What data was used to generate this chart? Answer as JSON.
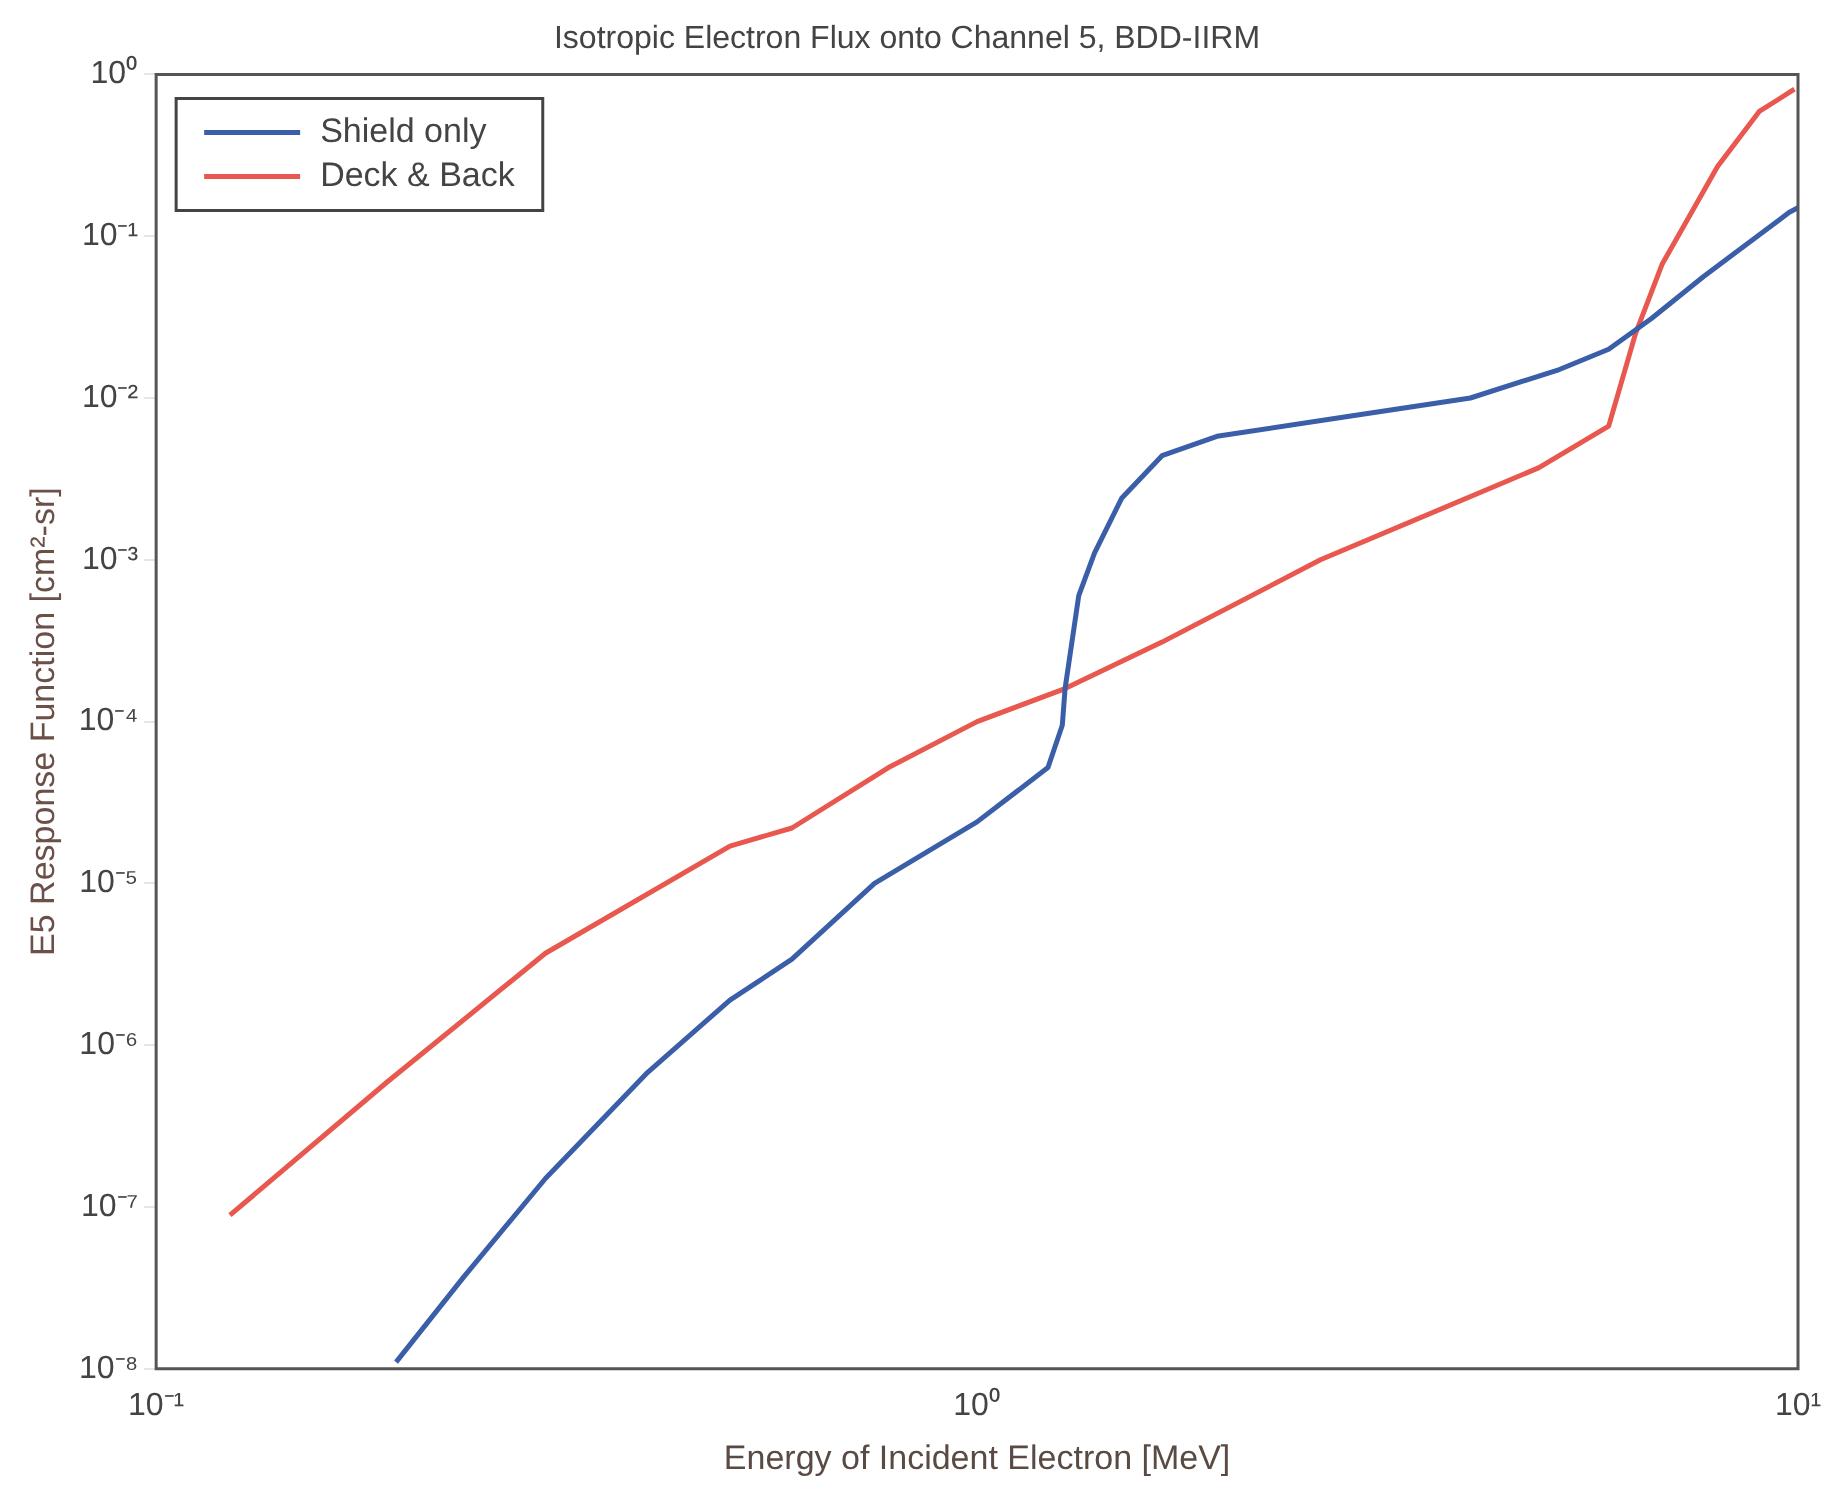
{
  "chart_data": {
    "type": "line",
    "title": "Isotropic Electron Flux onto Channel 5, BDD-IIRM",
    "xlabel": "Energy of Incident Electron [MeV]",
    "ylabel": "E5 Response Function [cm²-sr]",
    "log": "xy",
    "xlim": [
      0.1,
      10
    ],
    "ylim": [
      1e-08,
      1
    ],
    "xticks": [
      {
        "value": 0.1,
        "label": "10⁻¹"
      },
      {
        "value": 1,
        "label": "10⁰"
      },
      {
        "value": 10,
        "label": "10¹"
      }
    ],
    "yticks": [
      {
        "value": 1e-08,
        "label": "10⁻⁸"
      },
      {
        "value": 1e-07,
        "label": "10⁻⁷"
      },
      {
        "value": 1e-06,
        "label": "10⁻⁶"
      },
      {
        "value": 1e-05,
        "label": "10⁻⁵"
      },
      {
        "value": 0.0001,
        "label": "10⁻⁴"
      },
      {
        "value": 0.001,
        "label": "10⁻³"
      },
      {
        "value": 0.01,
        "label": "10⁻²"
      },
      {
        "value": 0.1,
        "label": "10⁻¹"
      },
      {
        "value": 1,
        "label": "10⁰"
      }
    ],
    "grid": false,
    "legend": "top left",
    "marker": "none",
    "line_style": "solid",
    "series": [
      {
        "name": "Shield only",
        "color": "#3a5fa8",
        "x": [
          0.196,
          0.237,
          0.298,
          0.397,
          0.5,
          0.595,
          0.75,
          1,
          1.22,
          1.27,
          1.28,
          1.33,
          1.39,
          1.5,
          1.68,
          1.96,
          2.88,
          3.99,
          5.12,
          5.88,
          6.63,
          7.66,
          9.75,
          10
        ],
        "values": [
          1.1e-08,
          3.7e-08,
          1.5e-07,
          6.8e-07,
          1.9e-06,
          3.4e-06,
          1e-05,
          2.4e-05,
          5.2e-05,
          9.5e-05,
          0.00016,
          0.0006,
          0.0011,
          0.0024,
          0.0044,
          0.0058,
          0.0078,
          0.01,
          0.015,
          0.02,
          0.031,
          0.056,
          0.14,
          0.15
        ]
      },
      {
        "name": "Deck & Back",
        "color": "#e8584e",
        "x": [
          0.123,
          0.191,
          0.298,
          0.5,
          0.595,
          0.78,
          1,
          1.28,
          1.68,
          2.62,
          4.83,
          5.88,
          6.34,
          6.83,
          7.98,
          8.97,
          9.9
        ],
        "values": [
          8.9e-08,
          5.9e-07,
          3.7e-06,
          1.7e-05,
          2.2e-05,
          5.2e-05,
          0.0001,
          0.00016,
          0.00031,
          0.001,
          0.0037,
          0.0067,
          0.025,
          0.067,
          0.27,
          0.59,
          0.81
        ]
      }
    ]
  }
}
